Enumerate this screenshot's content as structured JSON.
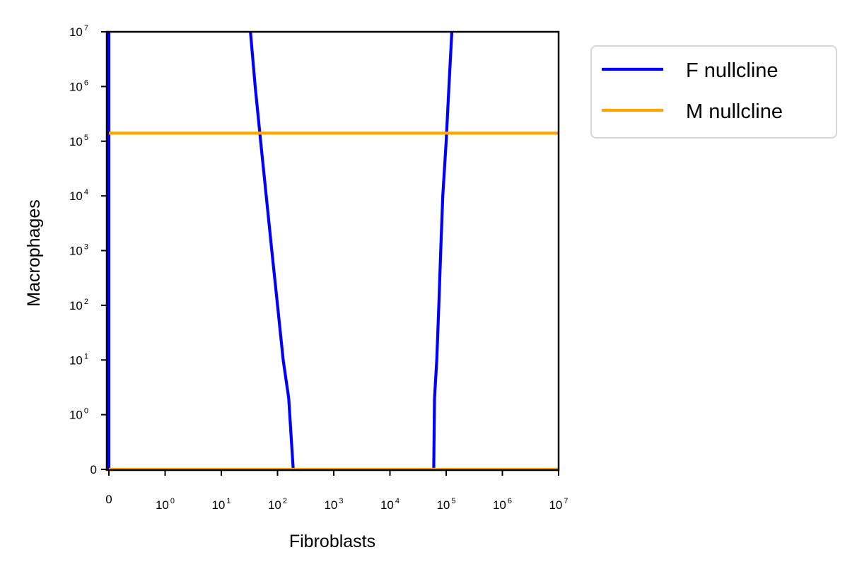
{
  "chart_data": {
    "type": "line",
    "xlabel": "Fibroblasts",
    "ylabel": "Macrophages",
    "xscale": "symlog",
    "yscale": "symlog",
    "xlim": [
      0,
      10000000
    ],
    "ylim": [
      0,
      10000000
    ],
    "x_ticks": [
      {
        "value": 0,
        "base": "0",
        "exp": ""
      },
      {
        "value": 1,
        "base": "10",
        "exp": "0"
      },
      {
        "value": 10,
        "base": "10",
        "exp": "1"
      },
      {
        "value": 100,
        "base": "10",
        "exp": "2"
      },
      {
        "value": 1000,
        "base": "10",
        "exp": "3"
      },
      {
        "value": 10000,
        "base": "10",
        "exp": "4"
      },
      {
        "value": 100000,
        "base": "10",
        "exp": "5"
      },
      {
        "value": 1000000,
        "base": "10",
        "exp": "6"
      },
      {
        "value": 10000000,
        "base": "10",
        "exp": "7"
      }
    ],
    "y_ticks": [
      {
        "value": 0,
        "base": "0",
        "exp": ""
      },
      {
        "value": 1,
        "base": "10",
        "exp": "0"
      },
      {
        "value": 10,
        "base": "10",
        "exp": "1"
      },
      {
        "value": 100,
        "base": "10",
        "exp": "2"
      },
      {
        "value": 1000,
        "base": "10",
        "exp": "3"
      },
      {
        "value": 10000,
        "base": "10",
        "exp": "4"
      },
      {
        "value": 100000,
        "base": "10",
        "exp": "5"
      },
      {
        "value": 1000000,
        "base": "10",
        "exp": "6"
      },
      {
        "value": 10000000,
        "base": "10",
        "exp": "7"
      }
    ],
    "legend_position": "outside-top-right",
    "grid": false,
    "series": [
      {
        "name": "F nullcline",
        "color": "#0000ff",
        "segments": [
          [
            [
              0,
              0
            ],
            [
              0,
              10000000
            ]
          ],
          [
            [
              33,
              10000000
            ],
            [
              40,
              1000000
            ],
            [
              50,
              100000
            ],
            [
              63,
              10000
            ],
            [
              79,
              1000
            ],
            [
              100,
              100
            ],
            [
              126,
              10
            ],
            [
              158,
              2
            ],
            [
              190,
              0
            ]
          ],
          [
            [
              60000,
              0
            ],
            [
              62000,
              2
            ],
            [
              68000,
              10
            ],
            [
              74000,
              100
            ],
            [
              80000,
              1000
            ],
            [
              87000,
              10000
            ],
            [
              100000,
              100000
            ],
            [
              112000,
              1000000
            ],
            [
              126000,
              10000000
            ]
          ]
        ]
      },
      {
        "name": "M nullcline",
        "color": "#ffa500",
        "segments": [
          [
            [
              0,
              140000
            ],
            [
              10000000,
              140000
            ]
          ],
          [
            [
              0,
              0
            ],
            [
              10000000,
              0
            ]
          ]
        ]
      }
    ]
  }
}
